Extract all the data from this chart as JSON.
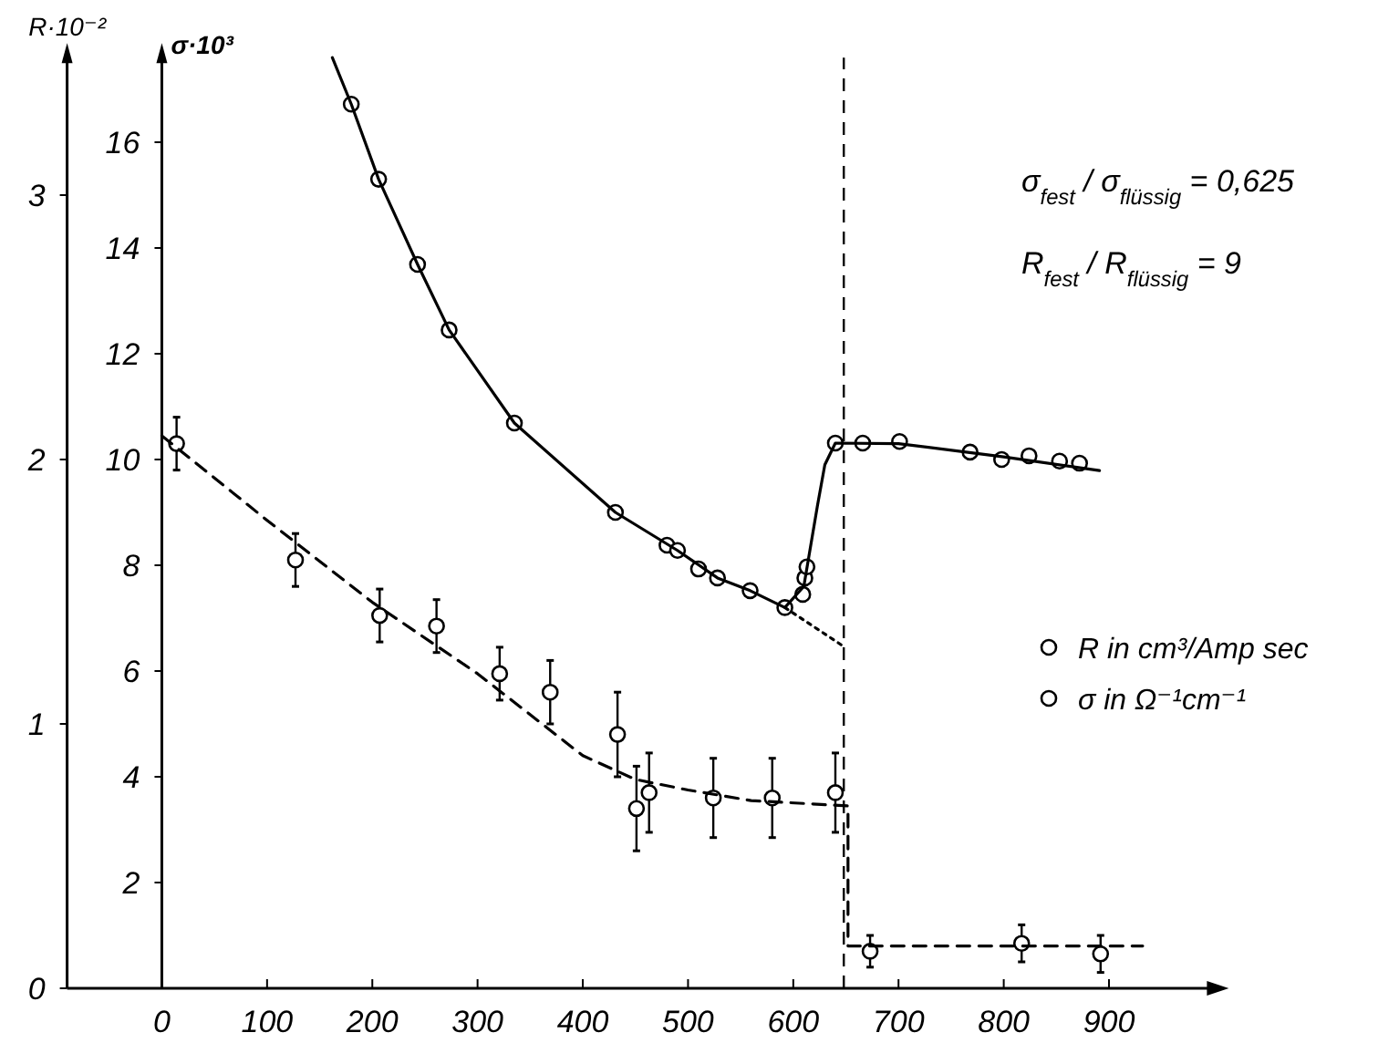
{
  "chart_data": {
    "type": "scatter",
    "ylabel": "R·10⁻²",
    "y2label": "σ·10³",
    "xlim": [
      -90,
      1000
    ],
    "xticks": [
      0,
      100,
      200,
      300,
      400,
      500,
      600,
      700,
      800,
      900
    ],
    "ylim": [
      0,
      3.52
    ],
    "yticks": [
      0,
      1,
      2,
      3
    ],
    "y2lim": [
      0,
      17.6
    ],
    "y2ticks": [
      2,
      4,
      6,
      8,
      10,
      12,
      14,
      16
    ],
    "marker": "circle",
    "legend": "right",
    "series": [
      {
        "name": "R in cm³/Amp sec",
        "axis": "y",
        "color": "#000000",
        "x": [
          14,
          127,
          207,
          261,
          321,
          369,
          433,
          451,
          463,
          524,
          580,
          640,
          673,
          817,
          892
        ],
        "values": [
          2.06,
          1.62,
          1.41,
          1.37,
          1.19,
          1.12,
          0.96,
          0.68,
          0.74,
          0.72,
          0.72,
          0.74,
          0.14,
          0.17,
          0.13
        ],
        "errors": [
          0.1,
          0.1,
          0.1,
          0.1,
          0.1,
          0.12,
          0.16,
          0.16,
          0.15,
          0.15,
          0.15,
          0.15,
          0.06,
          0.07,
          0.07
        ]
      },
      {
        "name": "σ in Ω⁻¹cm⁻¹",
        "axis": "y2",
        "color": "#000000",
        "x": [
          180,
          206,
          243,
          273,
          335,
          431,
          480,
          490,
          510,
          528,
          559,
          592,
          609,
          611,
          613,
          640,
          666,
          701,
          768,
          798,
          824,
          853,
          872
        ],
        "values": [
          16.72,
          15.3,
          13.69,
          12.45,
          10.69,
          9.0,
          8.38,
          8.28,
          7.93,
          7.76,
          7.52,
          7.2,
          7.45,
          7.76,
          7.97,
          10.31,
          10.31,
          10.34,
          10.14,
          10.0,
          10.07,
          9.97,
          9.93
        ]
      },
      {
        "type": "line",
        "marker": "none",
        "axis": "y2",
        "color": "#000000",
        "line_style": "solid",
        "x": [
          162,
          180,
          206,
          243,
          273,
          335,
          431,
          490,
          528,
          559,
          592,
          610,
          623,
          630,
          640,
          700,
          800,
          891
        ],
        "values": [
          17.6,
          16.72,
          15.3,
          13.69,
          12.45,
          10.69,
          9.0,
          8.28,
          7.76,
          7.52,
          7.2,
          7.6,
          9.13,
          9.9,
          10.31,
          10.3,
          10.05,
          9.79
        ]
      },
      {
        "type": "line",
        "marker": "none",
        "axis": "y2",
        "color": "#000000",
        "line_style": "dotted",
        "x": [
          592,
          649
        ],
        "values": [
          7.2,
          6.45
        ]
      },
      {
        "type": "line",
        "marker": "none",
        "axis": "y",
        "color": "#000000",
        "line_style": "dashed",
        "x": [
          0,
          100,
          200,
          300,
          400,
          450,
          500,
          560,
          652,
          652,
          932
        ],
        "values": [
          2.09,
          1.77,
          1.46,
          1.19,
          0.88,
          0.79,
          0.75,
          0.71,
          0.69,
          0.16,
          0.16
        ]
      }
    ],
    "ref_lines": [
      {
        "axis": "x",
        "value": 648,
        "line_style": "dashed"
      }
    ],
    "annotations": [
      "σ$_{fest}$ / σ$_{flüssig}$ = 0,625",
      "R$_{fest}$ / R$_{flüssig}$ = 9"
    ]
  }
}
